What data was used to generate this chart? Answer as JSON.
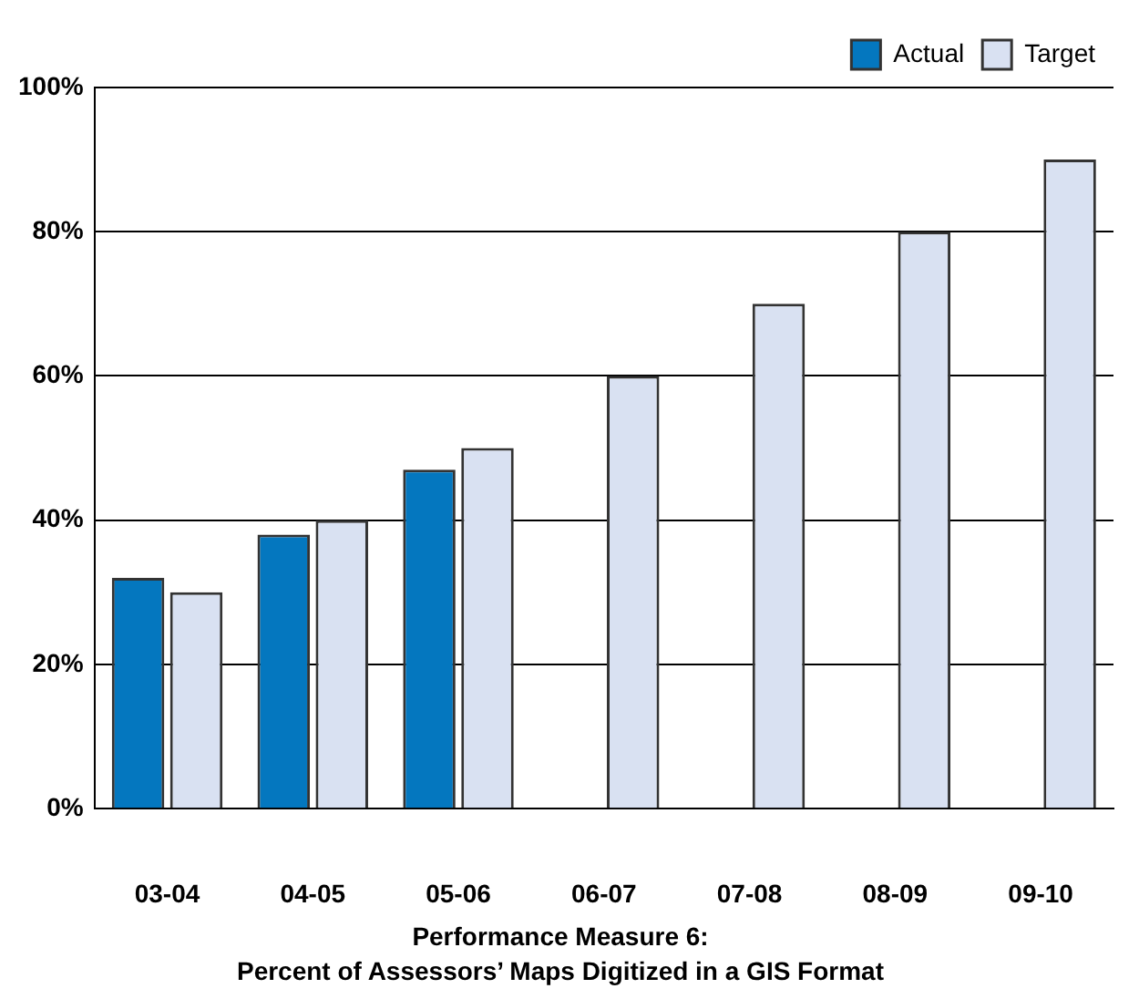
{
  "chart_data": {
    "type": "bar",
    "title": "Performance Measure 6:",
    "subtitle": "Percent of Assessors’ Maps Digitized in a GIS Format",
    "categories": [
      "03-04",
      "04-05",
      "05-06",
      "06-07",
      "07-08",
      "08-09",
      "09-10"
    ],
    "series": [
      {
        "name": "Actual",
        "color": "#0477bf",
        "values": [
          32,
          38,
          47,
          null,
          null,
          null,
          null
        ]
      },
      {
        "name": "Target",
        "color": "#d9e1f2",
        "values": [
          30,
          40,
          50,
          60,
          70,
          80,
          90
        ]
      }
    ],
    "ylim": [
      0,
      100
    ],
    "yticks": [
      {
        "value": 0,
        "label": "0%"
      },
      {
        "value": 20,
        "label": "20%"
      },
      {
        "value": 40,
        "label": "40%"
      },
      {
        "value": 60,
        "label": "60%"
      },
      {
        "value": 80,
        "label": "80%"
      },
      {
        "value": 100,
        "label": "100%"
      }
    ],
    "grid": "y",
    "legend": "top right"
  }
}
